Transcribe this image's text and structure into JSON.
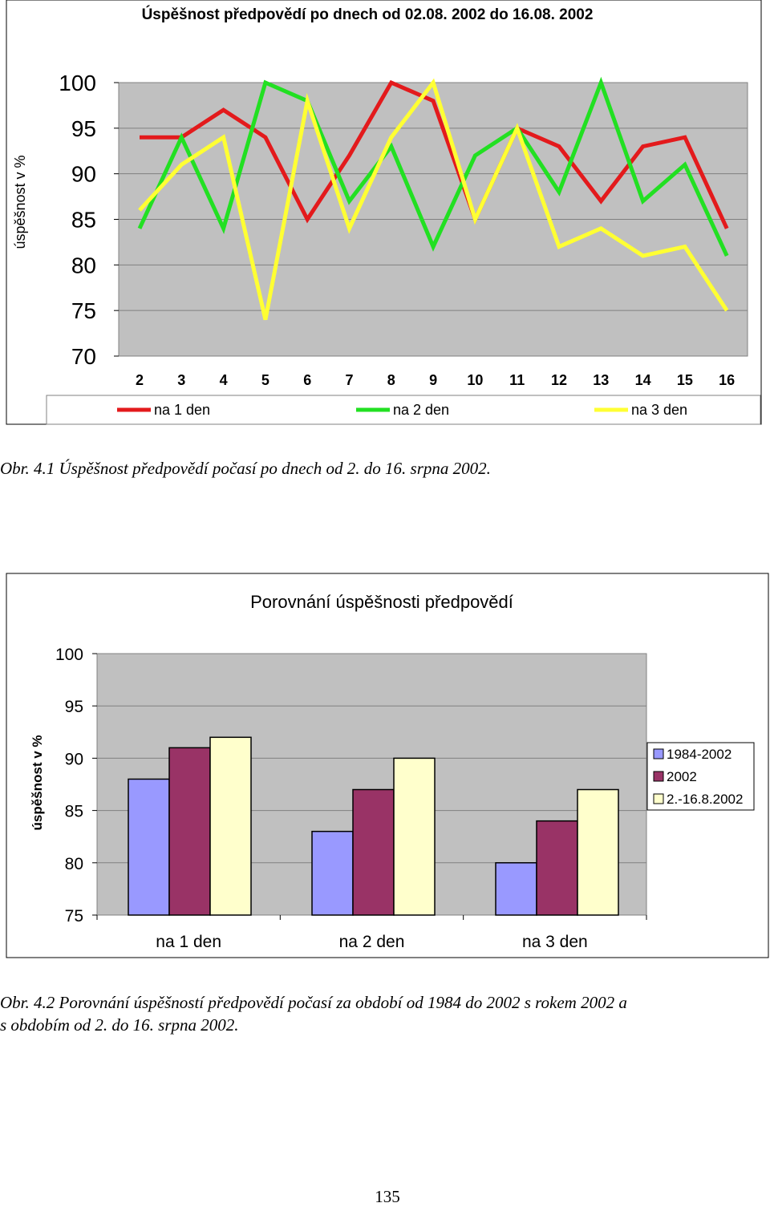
{
  "chart_data": [
    {
      "type": "line",
      "title": "Úspěšnost předpovědí po dnech od 02.08. 2002 do 16.08. 2002",
      "ylabel": "úspěšnost v %",
      "xlabel": "",
      "ylim": [
        70,
        100
      ],
      "yticks": [
        "100",
        "95",
        "90",
        "85",
        "80",
        "75",
        "70"
      ],
      "categories": [
        "2",
        "3",
        "4",
        "5",
        "6",
        "7",
        "8",
        "9",
        "10",
        "11",
        "12",
        "13",
        "14",
        "15",
        "16"
      ],
      "series": [
        {
          "name": "na 1 den",
          "color": "#e31a1c",
          "values": [
            94,
            94,
            97,
            94,
            85,
            92,
            100,
            98,
            85,
            95,
            93,
            87,
            93,
            94,
            84
          ]
        },
        {
          "name": "na 2 den",
          "color": "#22e022",
          "values": [
            84,
            94,
            84,
            100,
            98,
            87,
            93,
            82,
            92,
            95,
            88,
            100,
            87,
            91,
            81
          ]
        },
        {
          "name": "na 3 den",
          "color": "#ffff33",
          "values": [
            86,
            91,
            94,
            74,
            98,
            84,
            94,
            100,
            85,
            95,
            82,
            84,
            81,
            82,
            75
          ]
        }
      ],
      "grid": true,
      "legend": "bottom"
    },
    {
      "type": "bar",
      "title": "Porovnání úspěšnosti předpovědí",
      "ylabel": "úspěšnost v %",
      "xlabel": "",
      "ylim": [
        75,
        100
      ],
      "yticks": [
        "100",
        "95",
        "90",
        "85",
        "80",
        "75"
      ],
      "categories": [
        "na 1 den",
        "na 2 den",
        "na 3 den"
      ],
      "series": [
        {
          "name": "1984-2002",
          "color": "#9999ff",
          "values": [
            88,
            83,
            80
          ]
        },
        {
          "name": "2002",
          "color": "#993366",
          "values": [
            91,
            87,
            84
          ]
        },
        {
          "name": "2.-16.8.2002",
          "color": "#ffffcc",
          "values": [
            92,
            90,
            87
          ]
        }
      ],
      "grid": true,
      "legend": "right"
    }
  ],
  "captions": {
    "fig1": "Obr. 4.1 Úspěšnost předpovědí počasí po dnech od 2. do 16. srpna 2002.",
    "fig2_line1": "Obr. 4.2 Porovnání úspěšností předpovědí počasí za období od 1984 do 2002 s rokem 2002 a",
    "fig2_line2": "s obdobím od 2. do 16. srpna 2002."
  },
  "page_number": "135"
}
